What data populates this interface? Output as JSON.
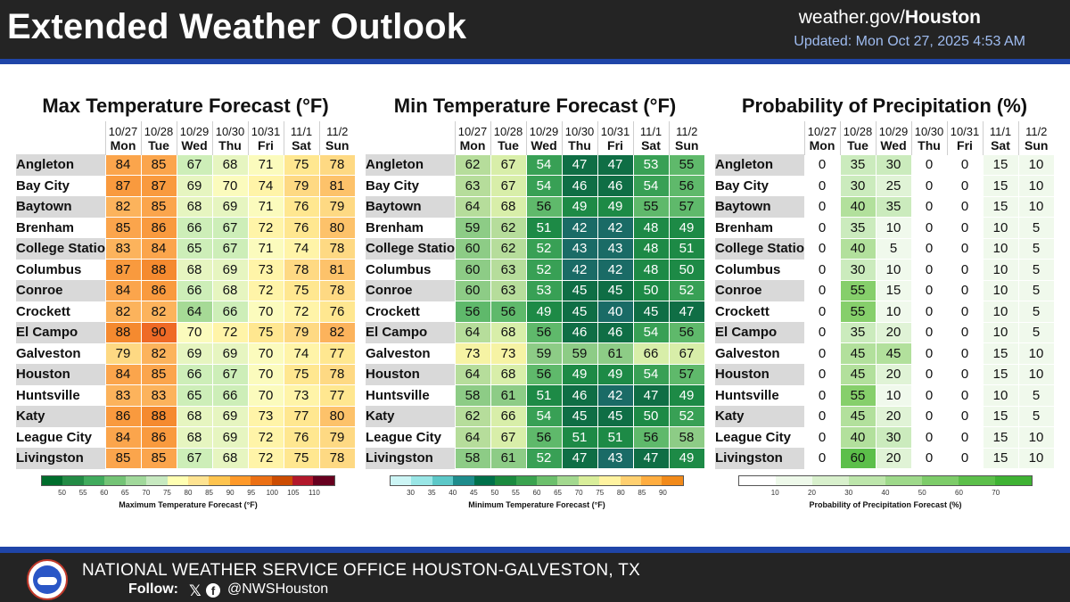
{
  "header": {
    "title": "Extended Weather Outlook",
    "site_prefix": "weather.gov/",
    "site_suffix": "Houston",
    "updated": "Updated: Mon Oct 27, 2025 4:53 AM"
  },
  "dates": [
    "10/27",
    "10/28",
    "10/29",
    "10/30",
    "10/31",
    "11/1",
    "11/2"
  ],
  "days": [
    "Mon",
    "Tue",
    "Wed",
    "Thu",
    "Fri",
    "Sat",
    "Sun"
  ],
  "cities": [
    "Angleton",
    "Bay City",
    "Baytown",
    "Brenham",
    "College Station",
    "Columbus",
    "Conroe",
    "Crockett",
    "El Campo",
    "Galveston",
    "Houston",
    "Huntsville",
    "Katy",
    "League City",
    "Livingston"
  ],
  "max_temp": {
    "title": "Max Temperature Forecast (°F)",
    "legend_label": "Maximum Temperature Forecast (°F)",
    "ticks": [
      "50",
      "55",
      "60",
      "65",
      "70",
      "75",
      "80",
      "85",
      "90",
      "95",
      "100",
      "105",
      "110"
    ],
    "colors": [
      "#006d2c",
      "#238b45",
      "#41ab5d",
      "#74c476",
      "#a1d99b",
      "#c7e9c0",
      "#ffffb2",
      "#fee391",
      "#fec44f",
      "#fe9929",
      "#ec7014",
      "#cc4c02",
      "#b2182b",
      "#67001f"
    ],
    "values": [
      [
        84,
        85,
        67,
        68,
        71,
        75,
        78
      ],
      [
        87,
        87,
        69,
        70,
        74,
        79,
        81
      ],
      [
        82,
        85,
        68,
        69,
        71,
        76,
        79
      ],
      [
        85,
        86,
        66,
        67,
        72,
        76,
        80
      ],
      [
        83,
        84,
        65,
        67,
        71,
        74,
        78
      ],
      [
        87,
        88,
        68,
        69,
        73,
        78,
        81
      ],
      [
        84,
        86,
        66,
        68,
        72,
        75,
        78
      ],
      [
        82,
        82,
        64,
        66,
        70,
        72,
        76
      ],
      [
        88,
        90,
        70,
        72,
        75,
        79,
        82
      ],
      [
        79,
        82,
        69,
        69,
        70,
        74,
        77
      ],
      [
        84,
        85,
        66,
        67,
        70,
        75,
        78
      ],
      [
        83,
        83,
        65,
        66,
        70,
        73,
        77
      ],
      [
        86,
        88,
        68,
        69,
        73,
        77,
        80
      ],
      [
        84,
        86,
        68,
        69,
        72,
        76,
        79
      ],
      [
        85,
        85,
        67,
        68,
        72,
        75,
        78
      ]
    ]
  },
  "min_temp": {
    "title": "Min Temperature Forecast (°F)",
    "legend_label": "Minimum Temperature Forecast (°F)",
    "ticks": [
      "30",
      "35",
      "40",
      "45",
      "50",
      "55",
      "60",
      "65",
      "70",
      "75",
      "80",
      "85",
      "90"
    ],
    "colors": [
      "#ccf5f5",
      "#99e6e6",
      "#5cc8c8",
      "#1e8c8c",
      "#00704a",
      "#1b8a3f",
      "#3aa34f",
      "#6cc06c",
      "#a3d98f",
      "#d9ee9a",
      "#fff3a0",
      "#ffd070",
      "#ffad40",
      "#f28a1a"
    ],
    "values": [
      [
        62,
        67,
        54,
        47,
        47,
        53,
        55
      ],
      [
        63,
        67,
        54,
        46,
        46,
        54,
        56
      ],
      [
        64,
        68,
        56,
        49,
        49,
        55,
        57
      ],
      [
        59,
        62,
        51,
        42,
        42,
        48,
        49
      ],
      [
        60,
        62,
        52,
        43,
        43,
        48,
        51
      ],
      [
        60,
        63,
        52,
        42,
        42,
        48,
        50
      ],
      [
        60,
        63,
        53,
        45,
        45,
        50,
        52
      ],
      [
        56,
        56,
        49,
        45,
        40,
        45,
        47
      ],
      [
        64,
        68,
        56,
        46,
        46,
        54,
        56
      ],
      [
        73,
        73,
        59,
        59,
        61,
        66,
        67
      ],
      [
        64,
        68,
        56,
        49,
        49,
        54,
        57
      ],
      [
        58,
        61,
        51,
        46,
        42,
        47,
        49
      ],
      [
        62,
        66,
        54,
        45,
        45,
        50,
        52
      ],
      [
        64,
        67,
        56,
        51,
        51,
        56,
        58
      ],
      [
        58,
        61,
        52,
        47,
        43,
        47,
        49
      ]
    ]
  },
  "pop": {
    "title": "Probability of Precipitation (%)",
    "legend_label": "Probability of Precipitation Forecast (%)",
    "ticks": [
      "10",
      "20",
      "30",
      "40",
      "50",
      "60",
      "70"
    ],
    "colors": [
      "#ffffff",
      "#eef9ea",
      "#d8f0cc",
      "#bde6ab",
      "#9ed98a",
      "#7dcc69",
      "#5cbf4a",
      "#3fb233"
    ],
    "values": [
      [
        0,
        35,
        30,
        0,
        0,
        15,
        10
      ],
      [
        0,
        30,
        25,
        0,
        0,
        15,
        10
      ],
      [
        0,
        40,
        35,
        0,
        0,
        15,
        10
      ],
      [
        0,
        35,
        10,
        0,
        0,
        10,
        5
      ],
      [
        0,
        40,
        5,
        0,
        0,
        10,
        5
      ],
      [
        0,
        30,
        10,
        0,
        0,
        10,
        5
      ],
      [
        0,
        55,
        15,
        0,
        0,
        10,
        5
      ],
      [
        0,
        55,
        10,
        0,
        0,
        10,
        5
      ],
      [
        0,
        35,
        20,
        0,
        0,
        10,
        5
      ],
      [
        0,
        45,
        45,
        0,
        0,
        15,
        10
      ],
      [
        0,
        45,
        20,
        0,
        0,
        15,
        10
      ],
      [
        0,
        55,
        10,
        0,
        0,
        10,
        5
      ],
      [
        0,
        45,
        20,
        0,
        0,
        15,
        5
      ],
      [
        0,
        40,
        30,
        0,
        0,
        15,
        10
      ],
      [
        0,
        60,
        20,
        0,
        0,
        15,
        10
      ]
    ]
  },
  "footer": {
    "office": "NATIONAL WEATHER SERVICE OFFICE HOUSTON-GALVESTON, TX",
    "follow": "Follow:",
    "x_glyph": "𝕏",
    "fb_glyph": "f",
    "handle": "@NWSHouston"
  }
}
